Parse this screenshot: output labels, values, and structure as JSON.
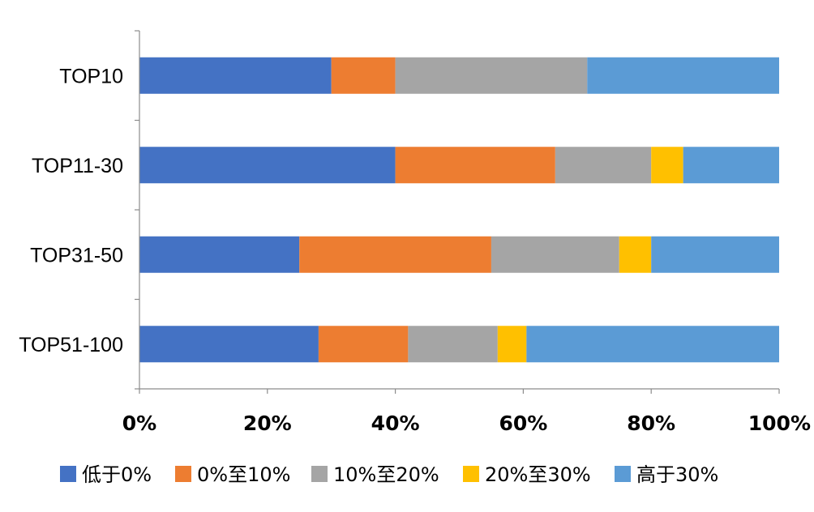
{
  "chart_data": {
    "type": "bar",
    "orientation": "horizontal",
    "stacked": "percent",
    "categories": [
      "TOP10",
      "TOP11-30",
      "TOP31-50",
      "TOP51-100"
    ],
    "series": [
      {
        "name": "低于0%",
        "color": "#4472C4",
        "values": [
          30,
          40,
          25,
          28
        ]
      },
      {
        "name": "0%至10%",
        "color": "#ED7D31",
        "values": [
          10,
          25,
          30,
          14
        ]
      },
      {
        "name": "10%至20%",
        "color": "#A5A5A5",
        "values": [
          30,
          15,
          20,
          14
        ]
      },
      {
        "name": "20%至30%",
        "color": "#FFC000",
        "values": [
          0,
          5,
          5,
          4.5
        ]
      },
      {
        "name": "高于30%",
        "color": "#5B9BD5",
        "values": [
          30,
          15,
          20,
          39.5
        ]
      }
    ],
    "xlim": [
      0,
      100
    ],
    "xticks": [
      "0%",
      "20%",
      "40%",
      "60%",
      "80%",
      "100%"
    ],
    "grid": false,
    "legend": "bottom"
  }
}
